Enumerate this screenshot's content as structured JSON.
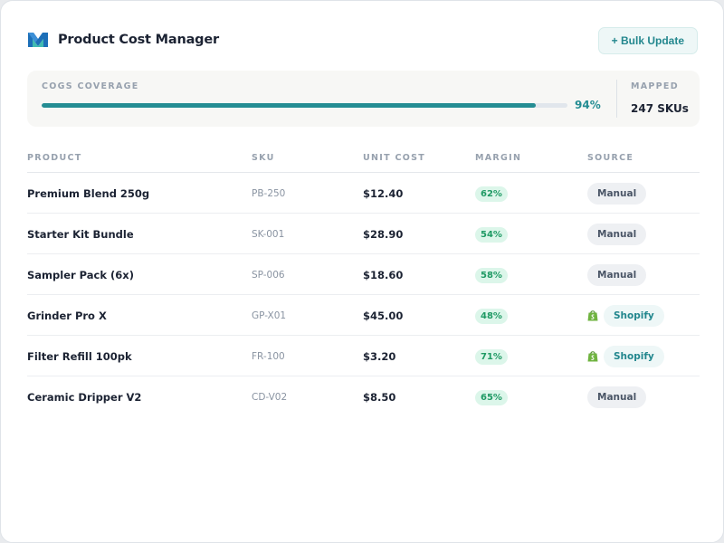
{
  "header": {
    "title": "Product Cost Manager",
    "bulk_update_label": "+ Bulk Update"
  },
  "coverage": {
    "label": "COGS COVERAGE",
    "percent_text": "94%",
    "percent_value": 94,
    "mapped_label": "MAPPED",
    "mapped_value": "247 SKUs"
  },
  "table": {
    "columns": [
      "PRODUCT",
      "SKU",
      "UNIT COST",
      "MARGIN",
      "SOURCE"
    ],
    "rows": [
      {
        "product": "Premium Blend 250g",
        "sku": "PB-250",
        "unit_cost": "$12.40",
        "margin": "62%",
        "source": "Manual"
      },
      {
        "product": "Starter Kit Bundle",
        "sku": "SK-001",
        "unit_cost": "$28.90",
        "margin": "54%",
        "source": "Manual"
      },
      {
        "product": "Sampler Pack (6x)",
        "sku": "SP-006",
        "unit_cost": "$18.60",
        "margin": "58%",
        "source": "Manual"
      },
      {
        "product": "Grinder Pro X",
        "sku": "GP-X01",
        "unit_cost": "$45.00",
        "margin": "48%",
        "source": "Shopify"
      },
      {
        "product": "Filter Refill 100pk",
        "sku": "FR-100",
        "unit_cost": "$3.20",
        "margin": "71%",
        "source": "Shopify"
      },
      {
        "product": "Ceramic Dripper V2",
        "sku": "CD-V02",
        "unit_cost": "$8.50",
        "margin": "65%",
        "source": "Manual"
      }
    ]
  },
  "icons": {
    "logo": "brand-logo-icon",
    "shopify": "shopify-bag-icon"
  },
  "colors": {
    "accent": "#248d93",
    "margin_badge_bg": "#dcf6ea",
    "margin_badge_text": "#1f9a64",
    "shopify_green": "#6fb33f"
  }
}
